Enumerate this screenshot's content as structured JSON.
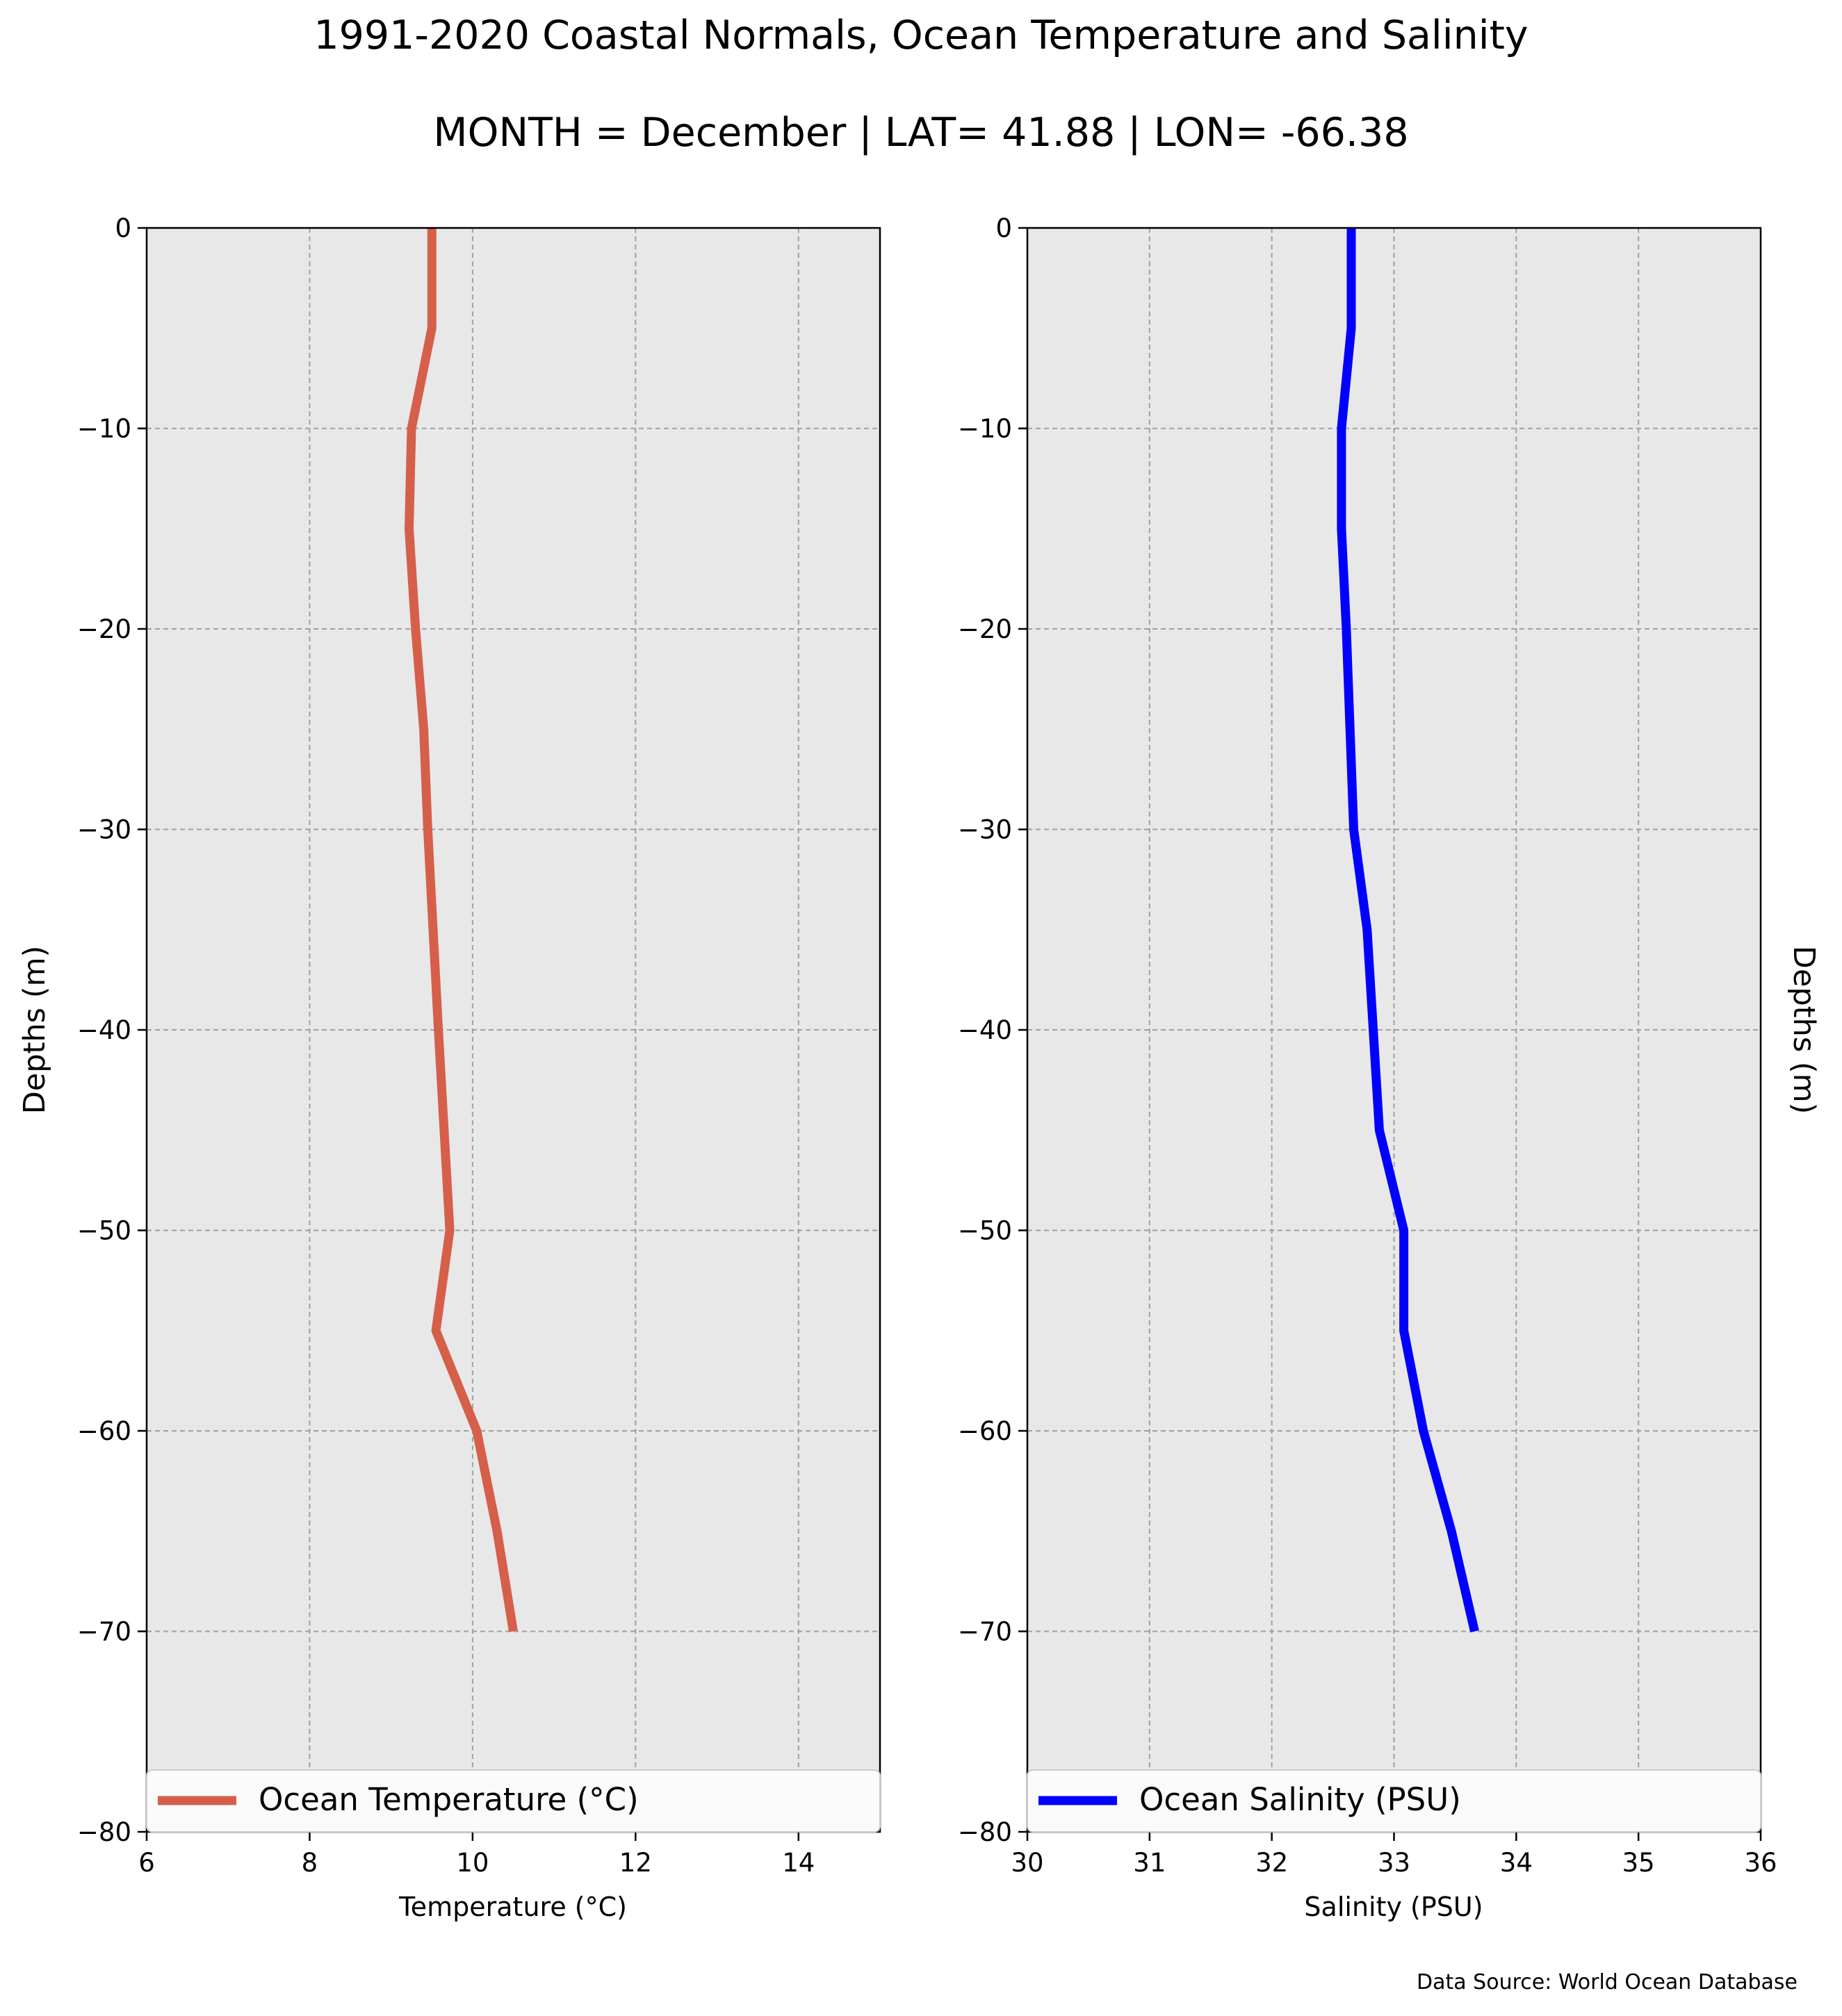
{
  "figure": {
    "title": "1991-2020 Coastal Normals, Ocean Temperature and Salinity",
    "subtitle": "MONTH = December | LAT= 41.88 | LON= -66.38",
    "source": "Data Source: World Ocean Database"
  },
  "chart_data": [
    {
      "type": "line",
      "xlabel": "Temperature ($^\\circ$C)",
      "xlabel_display": "Temperature (°C)",
      "ylabel": "Depths (m)",
      "xlim": [
        6,
        15
      ],
      "ylim": [
        -80,
        0
      ],
      "xticks": [
        6,
        8,
        10,
        12,
        14
      ],
      "xtick_labels": [
        "6",
        "8",
        "10",
        "12",
        "14"
      ],
      "yticks": [
        0,
        -10,
        -20,
        -30,
        -40,
        -50,
        -60,
        -70,
        -80
      ],
      "ytick_labels": [
        "0",
        "−10",
        "−20",
        "−30",
        "−40",
        "−50",
        "−60",
        "−70",
        "−80"
      ],
      "grid": true,
      "legend_position": "lower-center",
      "series": [
        {
          "name": "Ocean Temperature (°C)",
          "color": "#d65f4a",
          "x": [
            9.5,
            9.5,
            9.25,
            9.22,
            9.3,
            9.4,
            9.45,
            9.58,
            9.72,
            9.55,
            10.05,
            10.3,
            10.5
          ],
          "y": [
            0,
            -5,
            -10,
            -15,
            -20,
            -25,
            -30,
            -40,
            -50,
            -55,
            -60,
            -65,
            -70
          ]
        }
      ]
    },
    {
      "type": "line",
      "xlabel": "Salinity (PSU)",
      "ylabel": "Depths (m)",
      "xlim": [
        30,
        36
      ],
      "ylim": [
        -80,
        0
      ],
      "xticks": [
        30,
        31,
        32,
        33,
        34,
        35,
        36
      ],
      "xtick_labels": [
        "30",
        "31",
        "32",
        "33",
        "34",
        "35",
        "36"
      ],
      "yticks": [
        0,
        -10,
        -20,
        -30,
        -40,
        -50,
        -60,
        -70,
        -80
      ],
      "ytick_labels": [
        "0",
        "−10",
        "−20",
        "−30",
        "−40",
        "−50",
        "−60",
        "−70",
        "−80"
      ],
      "grid": true,
      "legend_position": "lower-center",
      "series": [
        {
          "name": "Ocean Salinity (PSU)",
          "color": "#0000ff",
          "x": [
            32.65,
            32.65,
            32.57,
            32.57,
            32.61,
            32.64,
            32.67,
            32.78,
            32.88,
            33.08,
            33.08,
            33.24,
            33.47,
            33.66
          ],
          "y": [
            0,
            -5,
            -10,
            -15,
            -20,
            -25,
            -30,
            -35,
            -45,
            -50,
            -55,
            -60,
            -65,
            -70
          ]
        }
      ]
    }
  ]
}
